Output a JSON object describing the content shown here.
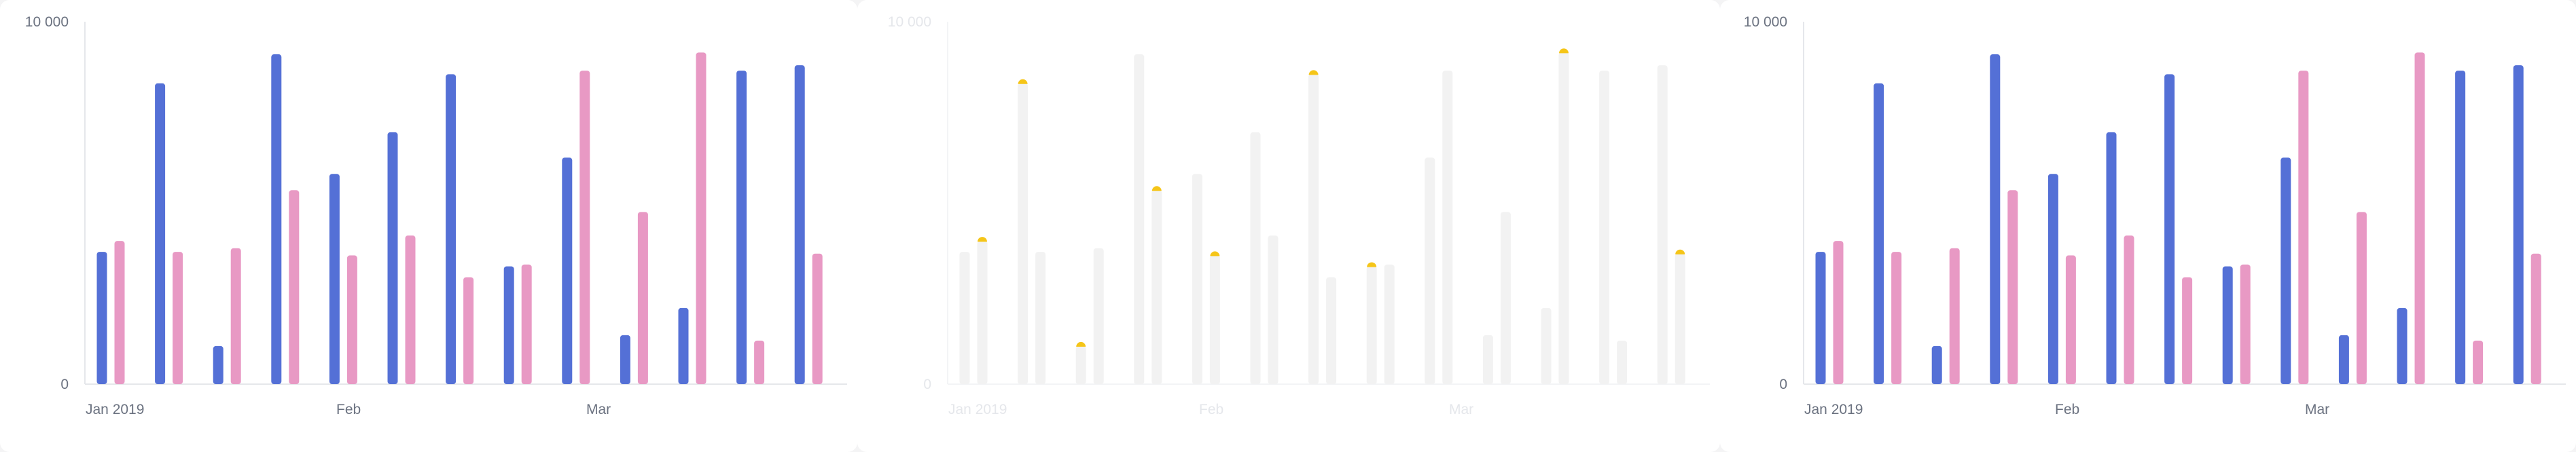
{
  "chart_data": [
    {
      "type": "bar",
      "style": "normal",
      "y_ticks": [
        "0",
        "10 000"
      ],
      "ylim": [
        0,
        10000
      ],
      "x_ticks": [
        "Jan 2019",
        "Feb",
        "Mar"
      ],
      "grid": false,
      "legend": "none",
      "series": [
        {
          "color": "#5470d6",
          "values": [
            3650,
            8300,
            1050,
            9100,
            5800,
            6950,
            8550,
            3250,
            6250,
            1350,
            2100,
            8650,
            8800
          ]
        },
        {
          "color": "#e899c4",
          "values": [
            3950,
            3650,
            3750,
            5350,
            3550,
            4100,
            2950,
            3300,
            8650,
            4750,
            9150,
            1200,
            3600
          ]
        }
      ]
    },
    {
      "type": "bar",
      "style": "faded-with-highlights",
      "y_ticks": [
        "0",
        "10 000"
      ],
      "ylim": [
        0,
        10000
      ],
      "x_ticks": [
        "Jan 2019",
        "Feb",
        "Mar"
      ],
      "grid": false,
      "legend": "none",
      "highlight_color": "#f5c518",
      "series": [
        {
          "color": "#f2f2f2",
          "values": [
            3650,
            8300,
            1050,
            9100,
            5800,
            6950,
            8550,
            3250,
            6250,
            1350,
            2100,
            8650,
            8800
          ]
        },
        {
          "color": "#f2f2f2",
          "values": [
            3950,
            3650,
            3750,
            5350,
            3550,
            4100,
            2950,
            3300,
            8650,
            4750,
            9150,
            1200,
            3600
          ]
        }
      ],
      "highlights": [
        {
          "series": 1,
          "index": 0
        },
        {
          "series": 0,
          "index": 1
        },
        {
          "series": 0,
          "index": 2
        },
        {
          "series": 1,
          "index": 3
        },
        {
          "series": 1,
          "index": 4
        },
        {
          "series": 0,
          "index": 6
        },
        {
          "series": 0,
          "index": 7
        },
        {
          "series": 1,
          "index": 10
        },
        {
          "series": 1,
          "index": 12
        }
      ]
    },
    {
      "type": "bar",
      "style": "normal",
      "y_ticks": [
        "0",
        "10 000"
      ],
      "ylim": [
        0,
        10000
      ],
      "x_ticks": [
        "Jan 2019",
        "Feb",
        "Mar"
      ],
      "grid": false,
      "legend": "none",
      "series": [
        {
          "color": "#5470d6",
          "values": [
            3650,
            8300,
            1050,
            9100,
            5800,
            6950,
            8550,
            3250,
            6250,
            1350,
            2100,
            8650,
            8800
          ]
        },
        {
          "color": "#e899c4",
          "values": [
            3950,
            3650,
            3750,
            5350,
            3550,
            4100,
            2950,
            3300,
            8650,
            4750,
            9150,
            1200,
            3600
          ]
        }
      ]
    }
  ]
}
